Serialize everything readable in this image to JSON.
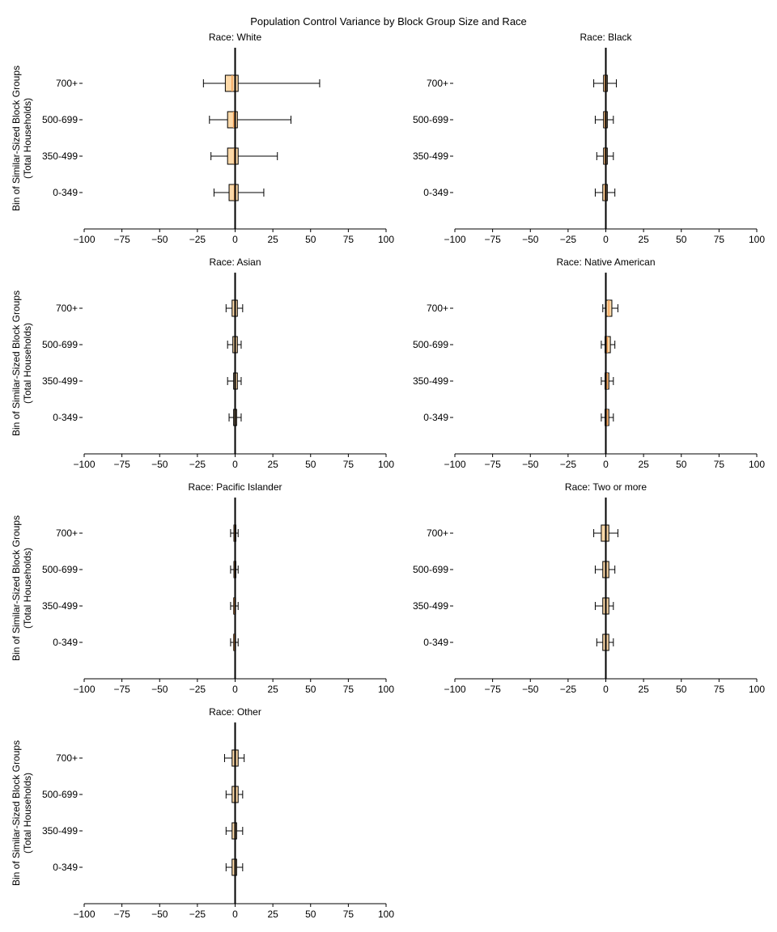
{
  "chart_data": {
    "type": "boxplot",
    "title": "Population Control Variance by Block Group Size and Race",
    "ylabel_lines": [
      "Bin of Similar-Sized Block Groups",
      "(Total Households)"
    ],
    "categories": [
      "700+",
      "500-699",
      "350-499",
      "0-349"
    ],
    "xlim": [
      -100,
      100
    ],
    "xticks": [
      -100,
      -75,
      -50,
      -25,
      0,
      25,
      50,
      75,
      100
    ],
    "xtick_labels": [
      "−100",
      "−75",
      "−50",
      "−25",
      "0",
      "25",
      "50",
      "75",
      "100"
    ],
    "box_color": "#fdd9a8",
    "median_color": "#f4a259",
    "panels": [
      {
        "title": "Race: White",
        "boxes": [
          {
            "category": "700+",
            "whislo": -21,
            "q1": -6.5,
            "med": -2,
            "q3": 2,
            "whishi": 56
          },
          {
            "category": "500-699",
            "whislo": -17,
            "q1": -5,
            "med": -1,
            "q3": 1.5,
            "whishi": 37
          },
          {
            "category": "350-499",
            "whislo": -16,
            "q1": -5,
            "med": -0.5,
            "q3": 2,
            "whishi": 28
          },
          {
            "category": "0-349",
            "whislo": -14,
            "q1": -4,
            "med": -0.5,
            "q3": 2,
            "whishi": 19
          }
        ]
      },
      {
        "title": "Race: Black",
        "boxes": [
          {
            "category": "700+",
            "whislo": -8,
            "q1": -1.5,
            "med": -0.5,
            "q3": 1,
            "whishi": 7
          },
          {
            "category": "500-699",
            "whislo": -7,
            "q1": -1.5,
            "med": -0.5,
            "q3": 1,
            "whishi": 5
          },
          {
            "category": "350-499",
            "whislo": -6,
            "q1": -1.5,
            "med": -0.5,
            "q3": 1,
            "whishi": 5
          },
          {
            "category": "0-349",
            "whislo": -7,
            "q1": -2,
            "med": -0.5,
            "q3": 1,
            "whishi": 6
          }
        ]
      },
      {
        "title": "Race: Asian",
        "boxes": [
          {
            "category": "700+",
            "whislo": -6,
            "q1": -2,
            "med": 0,
            "q3": 1.5,
            "whishi": 5
          },
          {
            "category": "500-699",
            "whislo": -5,
            "q1": -1.5,
            "med": 0,
            "q3": 1.5,
            "whishi": 4
          },
          {
            "category": "350-499",
            "whislo": -5,
            "q1": -1,
            "med": 0,
            "q3": 1.5,
            "whishi": 4
          },
          {
            "category": "0-349",
            "whislo": -4,
            "q1": -1,
            "med": 0,
            "q3": 1,
            "whishi": 4
          }
        ]
      },
      {
        "title": "Race: Native American",
        "boxes": [
          {
            "category": "700+",
            "whislo": -2,
            "q1": 0,
            "med": 2,
            "q3": 4,
            "whishi": 8
          },
          {
            "category": "500-699",
            "whislo": -3,
            "q1": -0.5,
            "med": 1,
            "q3": 3,
            "whishi": 6
          },
          {
            "category": "350-499",
            "whislo": -3,
            "q1": -0.5,
            "med": 1,
            "q3": 2,
            "whishi": 5
          },
          {
            "category": "0-349",
            "whislo": -3,
            "q1": -0.5,
            "med": 1,
            "q3": 2,
            "whishi": 5
          }
        ]
      },
      {
        "title": "Race: Pacific Islander",
        "boxes": [
          {
            "category": "700+",
            "whislo": -3,
            "q1": -0.8,
            "med": -0.3,
            "q3": 0.5,
            "whishi": 2
          },
          {
            "category": "500-699",
            "whislo": -3,
            "q1": -0.8,
            "med": -0.3,
            "q3": 0.5,
            "whishi": 2
          },
          {
            "category": "350-499",
            "whislo": -3,
            "q1": -1,
            "med": -0.5,
            "q3": 0.3,
            "whishi": 2
          },
          {
            "category": "0-349",
            "whislo": -3,
            "q1": -1,
            "med": -0.5,
            "q3": 0.3,
            "whishi": 2
          }
        ]
      },
      {
        "title": "Race: Two or more",
        "boxes": [
          {
            "category": "700+",
            "whislo": -8,
            "q1": -3,
            "med": 0,
            "q3": 2,
            "whishi": 8
          },
          {
            "category": "500-699",
            "whislo": -7,
            "q1": -2,
            "med": 0,
            "q3": 2,
            "whishi": 6
          },
          {
            "category": "350-499",
            "whislo": -7,
            "q1": -2,
            "med": 0,
            "q3": 2,
            "whishi": 5
          },
          {
            "category": "0-349",
            "whislo": -6,
            "q1": -2,
            "med": 0,
            "q3": 2,
            "whishi": 5
          }
        ]
      },
      {
        "title": "Race: Other",
        "boxes": [
          {
            "category": "700+",
            "whislo": -7,
            "q1": -2,
            "med": 0,
            "q3": 2,
            "whishi": 6
          },
          {
            "category": "500-699",
            "whislo": -6,
            "q1": -2,
            "med": 0,
            "q3": 2,
            "whishi": 5
          },
          {
            "category": "350-499",
            "whislo": -6,
            "q1": -2,
            "med": 0,
            "q3": 1,
            "whishi": 5
          },
          {
            "category": "0-349",
            "whislo": -6,
            "q1": -2,
            "med": 0,
            "q3": 1,
            "whishi": 5
          }
        ]
      }
    ]
  }
}
